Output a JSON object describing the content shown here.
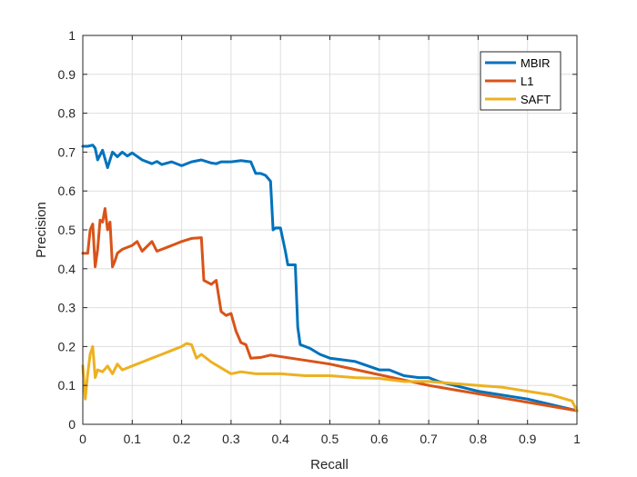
{
  "chart_data": {
    "type": "line",
    "title": "",
    "xlabel": "Recall",
    "ylabel": "Precision",
    "xlim": [
      0,
      1
    ],
    "ylim": [
      0,
      1
    ],
    "xticks": [
      0,
      0.1,
      0.2,
      0.3,
      0.4,
      0.5,
      0.6,
      0.7,
      0.8,
      0.9,
      1
    ],
    "yticks": [
      0,
      0.1,
      0.2,
      0.3,
      0.4,
      0.5,
      0.6,
      0.7,
      0.8,
      0.9,
      1
    ],
    "xtick_labels": [
      "0",
      "0.1",
      "0.2",
      "0.3",
      "0.4",
      "0.5",
      "0.6",
      "0.7",
      "0.8",
      "0.9",
      "1"
    ],
    "ytick_labels": [
      "0",
      "0.1",
      "0.2",
      "0.3",
      "0.4",
      "0.5",
      "0.6",
      "0.7",
      "0.8",
      "0.9",
      "1"
    ],
    "grid": true,
    "legend_position": "top-right",
    "series": [
      {
        "name": "MBIR",
        "color": "#0072BD",
        "x": [
          0,
          0.01,
          0.02,
          0.025,
          0.03,
          0.04,
          0.05,
          0.06,
          0.07,
          0.08,
          0.09,
          0.1,
          0.12,
          0.14,
          0.15,
          0.16,
          0.18,
          0.2,
          0.22,
          0.24,
          0.26,
          0.27,
          0.28,
          0.3,
          0.32,
          0.34,
          0.35,
          0.36,
          0.37,
          0.38,
          0.385,
          0.39,
          0.4,
          0.41,
          0.415,
          0.42,
          0.43,
          0.435,
          0.44,
          0.45,
          0.46,
          0.48,
          0.5,
          0.55,
          0.6,
          0.62,
          0.64,
          0.65,
          0.68,
          0.7,
          0.72,
          0.8,
          0.9,
          1.0
        ],
        "y": [
          0.715,
          0.715,
          0.718,
          0.71,
          0.68,
          0.705,
          0.66,
          0.7,
          0.688,
          0.7,
          0.69,
          0.698,
          0.68,
          0.67,
          0.676,
          0.668,
          0.675,
          0.665,
          0.675,
          0.68,
          0.672,
          0.67,
          0.675,
          0.675,
          0.678,
          0.675,
          0.645,
          0.645,
          0.64,
          0.625,
          0.5,
          0.505,
          0.505,
          0.445,
          0.41,
          0.41,
          0.41,
          0.25,
          0.205,
          0.2,
          0.195,
          0.18,
          0.17,
          0.162,
          0.14,
          0.14,
          0.13,
          0.125,
          0.12,
          0.12,
          0.11,
          0.085,
          0.065,
          0.035
        ]
      },
      {
        "name": "L1",
        "color": "#D95319",
        "x": [
          0,
          0.005,
          0.01,
          0.015,
          0.02,
          0.025,
          0.03,
          0.035,
          0.04,
          0.045,
          0.05,
          0.055,
          0.06,
          0.065,
          0.07,
          0.08,
          0.1,
          0.11,
          0.12,
          0.14,
          0.15,
          0.17,
          0.19,
          0.2,
          0.22,
          0.24,
          0.245,
          0.26,
          0.27,
          0.28,
          0.29,
          0.3,
          0.31,
          0.32,
          0.33,
          0.34,
          0.36,
          0.38,
          0.5,
          0.7,
          1.0
        ],
        "y": [
          0.44,
          0.44,
          0.44,
          0.5,
          0.515,
          0.405,
          0.45,
          0.525,
          0.52,
          0.555,
          0.5,
          0.52,
          0.405,
          0.42,
          0.44,
          0.45,
          0.46,
          0.47,
          0.445,
          0.47,
          0.445,
          0.455,
          0.465,
          0.47,
          0.478,
          0.48,
          0.37,
          0.36,
          0.37,
          0.29,
          0.28,
          0.285,
          0.24,
          0.21,
          0.205,
          0.17,
          0.172,
          0.178,
          0.155,
          0.1,
          0.035
        ]
      },
      {
        "name": "SAFT",
        "color": "#EDB120",
        "x": [
          0,
          0.005,
          0.01,
          0.015,
          0.02,
          0.025,
          0.03,
          0.04,
          0.05,
          0.06,
          0.07,
          0.08,
          0.1,
          0.12,
          0.14,
          0.16,
          0.18,
          0.2,
          0.21,
          0.22,
          0.23,
          0.24,
          0.26,
          0.28,
          0.3,
          0.32,
          0.35,
          0.4,
          0.45,
          0.5,
          0.55,
          0.6,
          0.65,
          0.7,
          0.75,
          0.8,
          0.85,
          0.9,
          0.95,
          0.99,
          1.0
        ],
        "y": [
          0.15,
          0.065,
          0.13,
          0.18,
          0.2,
          0.12,
          0.14,
          0.135,
          0.15,
          0.13,
          0.155,
          0.14,
          0.15,
          0.16,
          0.17,
          0.18,
          0.19,
          0.2,
          0.208,
          0.205,
          0.17,
          0.18,
          0.16,
          0.145,
          0.13,
          0.135,
          0.13,
          0.13,
          0.125,
          0.125,
          0.12,
          0.118,
          0.11,
          0.11,
          0.105,
          0.1,
          0.095,
          0.085,
          0.075,
          0.06,
          0.035
        ]
      }
    ]
  }
}
